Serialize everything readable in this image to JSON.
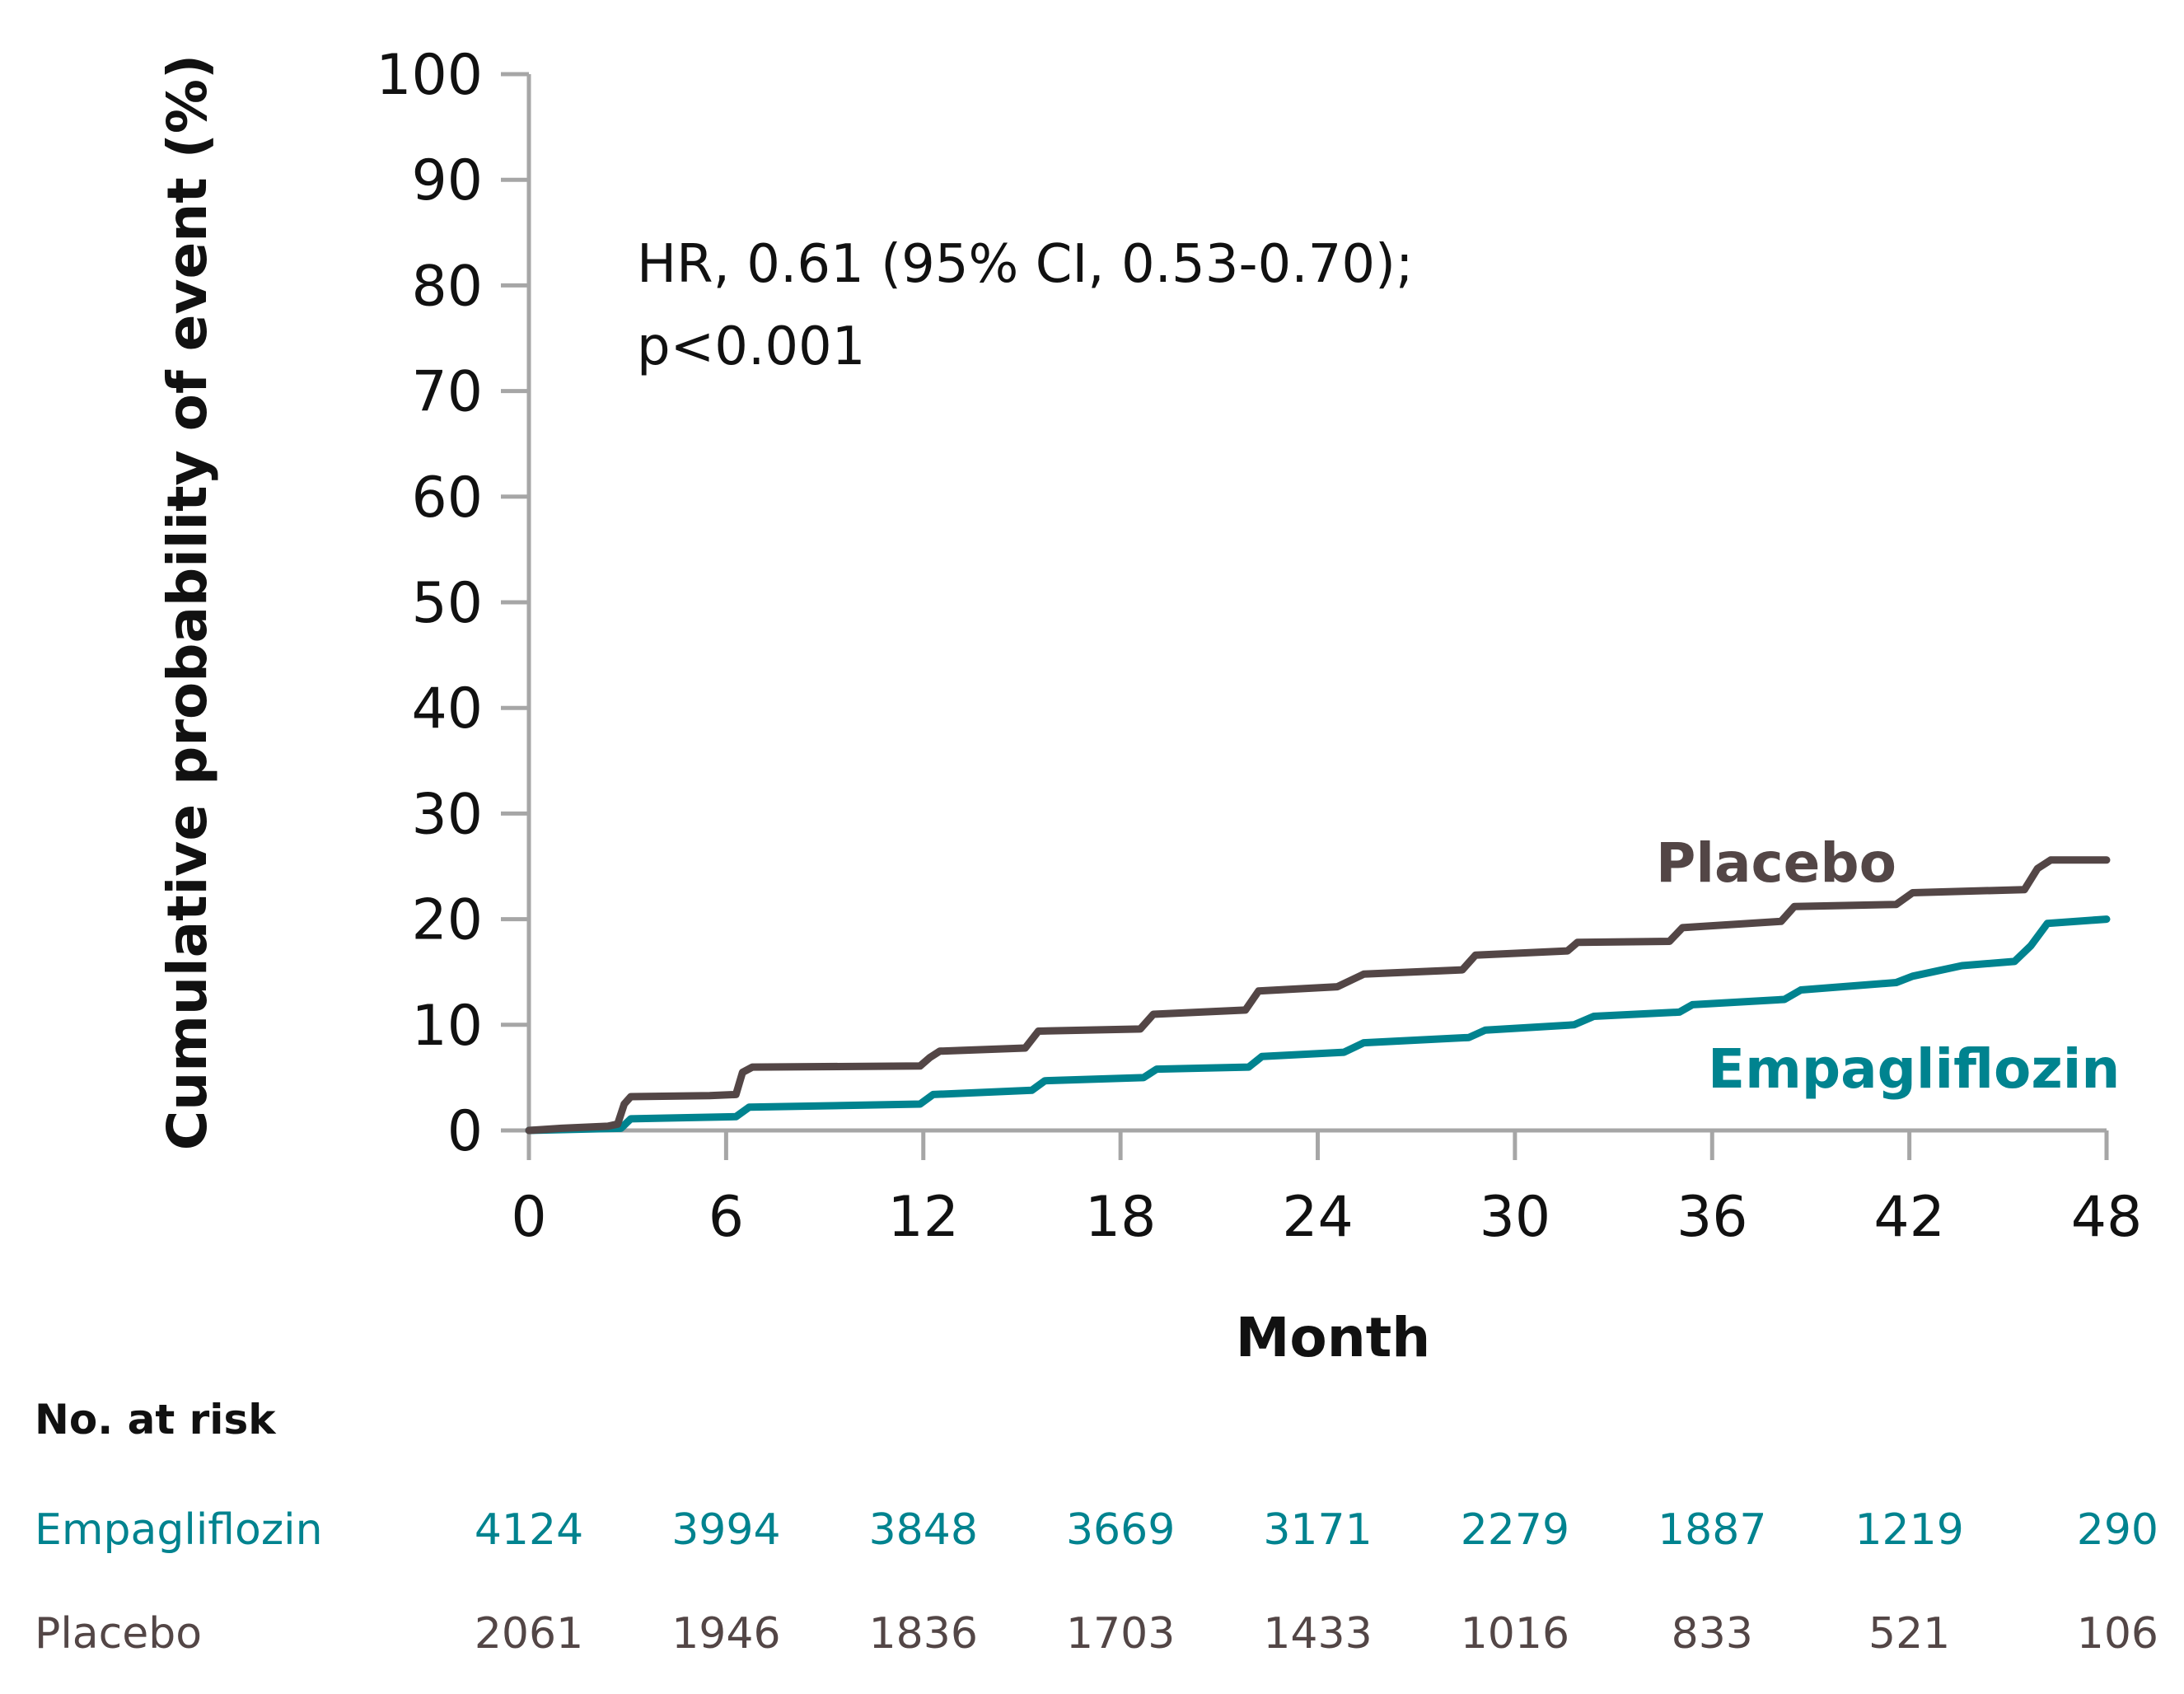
{
  "chart_data": {
    "type": "line",
    "subtype": "kaplan-meier step curve",
    "title": "",
    "xlabel": "Month",
    "ylabel": "Cumulative probability of event (%)",
    "xlim": [
      0,
      48
    ],
    "ylim": [
      0,
      100
    ],
    "xticks": [
      0,
      6,
      12,
      18,
      24,
      30,
      36,
      42,
      48
    ],
    "yticks": [
      0,
      10,
      20,
      30,
      40,
      50,
      60,
      70,
      80,
      90,
      100
    ],
    "grid": false,
    "annotation": [
      "HR, 0.61 (95% CI, 0.53-0.70);",
      "p<0.001"
    ],
    "series": [
      {
        "name": "Placebo",
        "color": "#534646",
        "points": [
          [
            0,
            0
          ],
          [
            1,
            0.2
          ],
          [
            2.4,
            0.4
          ],
          [
            2.7,
            0.6
          ],
          [
            2.9,
            2.5
          ],
          [
            3.1,
            3.2
          ],
          [
            5.5,
            3.3
          ],
          [
            6.3,
            3.4
          ],
          [
            6.5,
            5.5
          ],
          [
            6.8,
            6.0
          ],
          [
            11.9,
            6.1
          ],
          [
            12.2,
            6.9
          ],
          [
            12.5,
            7.5
          ],
          [
            15.1,
            7.8
          ],
          [
            15.5,
            9.4
          ],
          [
            18.6,
            9.6
          ],
          [
            19,
            11.0
          ],
          [
            21.8,
            11.4
          ],
          [
            22.2,
            13.2
          ],
          [
            24.6,
            13.6
          ],
          [
            25.4,
            14.8
          ],
          [
            28.4,
            15.2
          ],
          [
            28.8,
            16.6
          ],
          [
            31.6,
            17.0
          ],
          [
            31.9,
            17.8
          ],
          [
            34.7,
            17.9
          ],
          [
            35.1,
            19.2
          ],
          [
            38.1,
            19.8
          ],
          [
            38.5,
            21.2
          ],
          [
            41.6,
            21.4
          ],
          [
            42.1,
            22.5
          ],
          [
            45.5,
            22.8
          ],
          [
            45.9,
            24.8
          ],
          [
            46.3,
            25.6
          ],
          [
            48,
            25.6
          ]
        ]
      },
      {
        "name": "Empagliflozin",
        "color": "#00838F",
        "points": [
          [
            0,
            0
          ],
          [
            2.8,
            0.2
          ],
          [
            3.1,
            1.1
          ],
          [
            6.3,
            1.3
          ],
          [
            6.7,
            2.2
          ],
          [
            11.9,
            2.5
          ],
          [
            12.3,
            3.4
          ],
          [
            15.3,
            3.8
          ],
          [
            15.7,
            4.7
          ],
          [
            18.7,
            5.0
          ],
          [
            19.1,
            5.8
          ],
          [
            21.9,
            6.0
          ],
          [
            22.3,
            7.0
          ],
          [
            24.8,
            7.4
          ],
          [
            25.4,
            8.3
          ],
          [
            28.6,
            8.8
          ],
          [
            29.1,
            9.5
          ],
          [
            31.8,
            10.0
          ],
          [
            32.4,
            10.8
          ],
          [
            35.0,
            11.2
          ],
          [
            35.4,
            11.9
          ],
          [
            38.2,
            12.4
          ],
          [
            38.7,
            13.3
          ],
          [
            41.6,
            14.0
          ],
          [
            42.1,
            14.6
          ],
          [
            43.6,
            15.6
          ],
          [
            45.2,
            16.0
          ],
          [
            45.7,
            17.5
          ],
          [
            46.2,
            19.6
          ],
          [
            48,
            20.0
          ]
        ]
      }
    ],
    "legend": "inline labels near curve ends (right)",
    "at_risk": {
      "header": "No. at risk",
      "months": [
        0,
        6,
        12,
        18,
        24,
        30,
        36,
        42,
        48
      ],
      "rows": [
        {
          "name": "Empagliflozin",
          "color": "#00838F",
          "values": [
            "4124",
            "3994",
            "3848",
            "3669",
            "3171",
            "2279",
            "1887",
            "1219",
            "290"
          ]
        },
        {
          "name": "Placebo",
          "color": "#534646",
          "values": [
            "2061",
            "1946",
            "1836",
            "1703",
            "1433",
            "1016",
            "833",
            "521",
            "106"
          ]
        }
      ]
    }
  }
}
